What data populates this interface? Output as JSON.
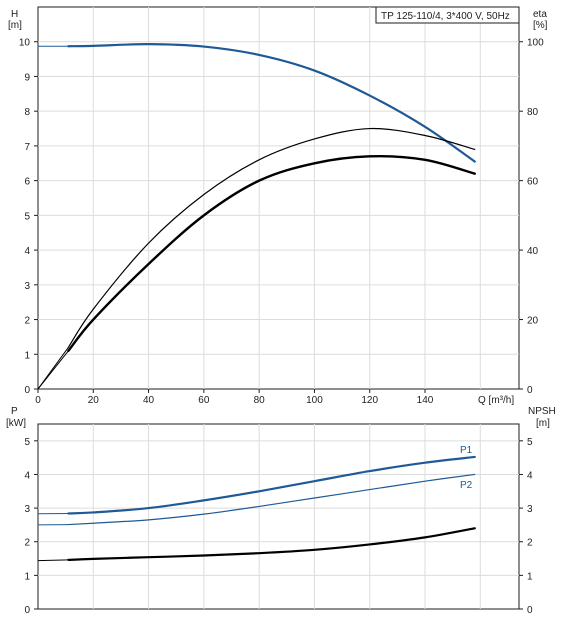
{
  "chart_data": [
    {
      "type": "line",
      "panel": "head-efficiency",
      "title": "TP 125-110/4, 3*400 V, 50Hz",
      "left_axis": {
        "label_line1": "H",
        "label_line2": "[m]",
        "range": [
          0,
          11
        ],
        "ticks": [
          "0",
          "1",
          "2",
          "3",
          "4",
          "5",
          "6",
          "7",
          "8",
          "9",
          "10"
        ]
      },
      "right_axis": {
        "label_line1": "eta",
        "label_line2": "[%]",
        "range": [
          0,
          110
        ],
        "ticks": [
          "0",
          "20",
          "40",
          "60",
          "80",
          "100"
        ]
      },
      "x_axis": {
        "label": "Q [m³/h]",
        "range": [
          0,
          174
        ],
        "ticks": [
          "0",
          "20",
          "40",
          "60",
          "80",
          "100",
          "120",
          "140"
        ]
      },
      "grid": true,
      "series": [
        {
          "axis": "left",
          "color": "#1f5a96",
          "x": [
            0,
            11,
            20,
            40,
            60,
            80,
            100,
            120,
            140,
            158
          ],
          "y": [
            9.87,
            9.87,
            9.88,
            9.93,
            9.86,
            9.62,
            9.17,
            8.45,
            7.55,
            6.55
          ]
        },
        {
          "axis": "right",
          "color": "#000000",
          "x": [
            0,
            11,
            20,
            40,
            60,
            80,
            100,
            120,
            140,
            158
          ],
          "y": [
            0,
            12,
            23,
            42,
            56,
            66,
            72,
            75,
            73,
            69
          ]
        },
        {
          "axis": "right",
          "color": "#000000",
          "x": [
            0,
            11,
            20,
            40,
            60,
            80,
            100,
            120,
            140,
            158
          ],
          "y": [
            0,
            11,
            20,
            36,
            50,
            60,
            65,
            67,
            66,
            62
          ]
        }
      ]
    },
    {
      "type": "line",
      "panel": "power-npsh",
      "left_axis": {
        "label_line1": "P",
        "label_line2": "[kW]",
        "range": [
          0,
          5.5
        ],
        "ticks": [
          "0",
          "1",
          "2",
          "3",
          "4",
          "5"
        ]
      },
      "right_axis": {
        "label_line1": "NPSH",
        "label_line2": "[m]",
        "range": [
          0,
          5.5
        ],
        "ticks": [
          "0",
          "1",
          "2",
          "3",
          "4",
          "5"
        ]
      },
      "x_axis": {
        "range": [
          0,
          174
        ]
      },
      "grid": true,
      "series": [
        {
          "name": "P1",
          "axis": "left",
          "color": "#1f5a96",
          "x": [
            0,
            11,
            20,
            40,
            60,
            80,
            100,
            120,
            140,
            158
          ],
          "y": [
            2.83,
            2.84,
            2.87,
            3.0,
            3.23,
            3.5,
            3.8,
            4.1,
            4.35,
            4.52
          ]
        },
        {
          "name": "P2",
          "axis": "left",
          "color": "#1f5a96",
          "x": [
            0,
            11,
            20,
            40,
            60,
            80,
            100,
            120,
            140,
            158
          ],
          "y": [
            2.5,
            2.51,
            2.55,
            2.65,
            2.82,
            3.05,
            3.3,
            3.55,
            3.8,
            4.0
          ]
        },
        {
          "axis": "right",
          "color": "#000000",
          "x": [
            0,
            11,
            20,
            40,
            60,
            80,
            100,
            120,
            140,
            158
          ],
          "y": [
            1.44,
            1.46,
            1.49,
            1.54,
            1.59,
            1.66,
            1.76,
            1.92,
            2.13,
            2.4
          ]
        }
      ]
    }
  ]
}
